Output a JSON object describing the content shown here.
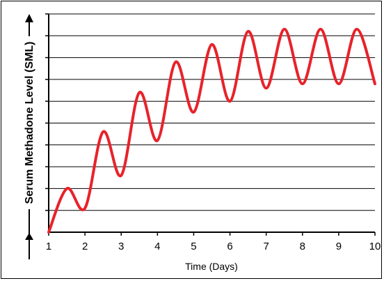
{
  "chart_data": {
    "type": "line",
    "xlabel": "Time (Days)",
    "ylabel": "Serum Methadone Level (SML)",
    "x_ticks": [
      1,
      2,
      3,
      4,
      5,
      6,
      7,
      8,
      9,
      10
    ],
    "xlim": [
      1,
      10
    ],
    "ylim": [
      0,
      10
    ],
    "y_gridlines": 10,
    "grid": true,
    "line_color": "#e8222a",
    "series": [
      {
        "x": [
          1,
          1.5,
          2,
          2.5,
          3,
          3.5,
          4,
          4.5,
          5,
          5.5,
          6,
          6.5,
          7,
          7.5,
          8,
          8.5,
          9,
          9.5,
          10
        ],
        "values": [
          0,
          2.0,
          1.1,
          4.6,
          2.6,
          6.4,
          4.2,
          7.8,
          5.5,
          8.6,
          6.0,
          9.2,
          6.6,
          9.3,
          6.8,
          9.3,
          6.8,
          9.3,
          6.8
        ]
      }
    ]
  }
}
